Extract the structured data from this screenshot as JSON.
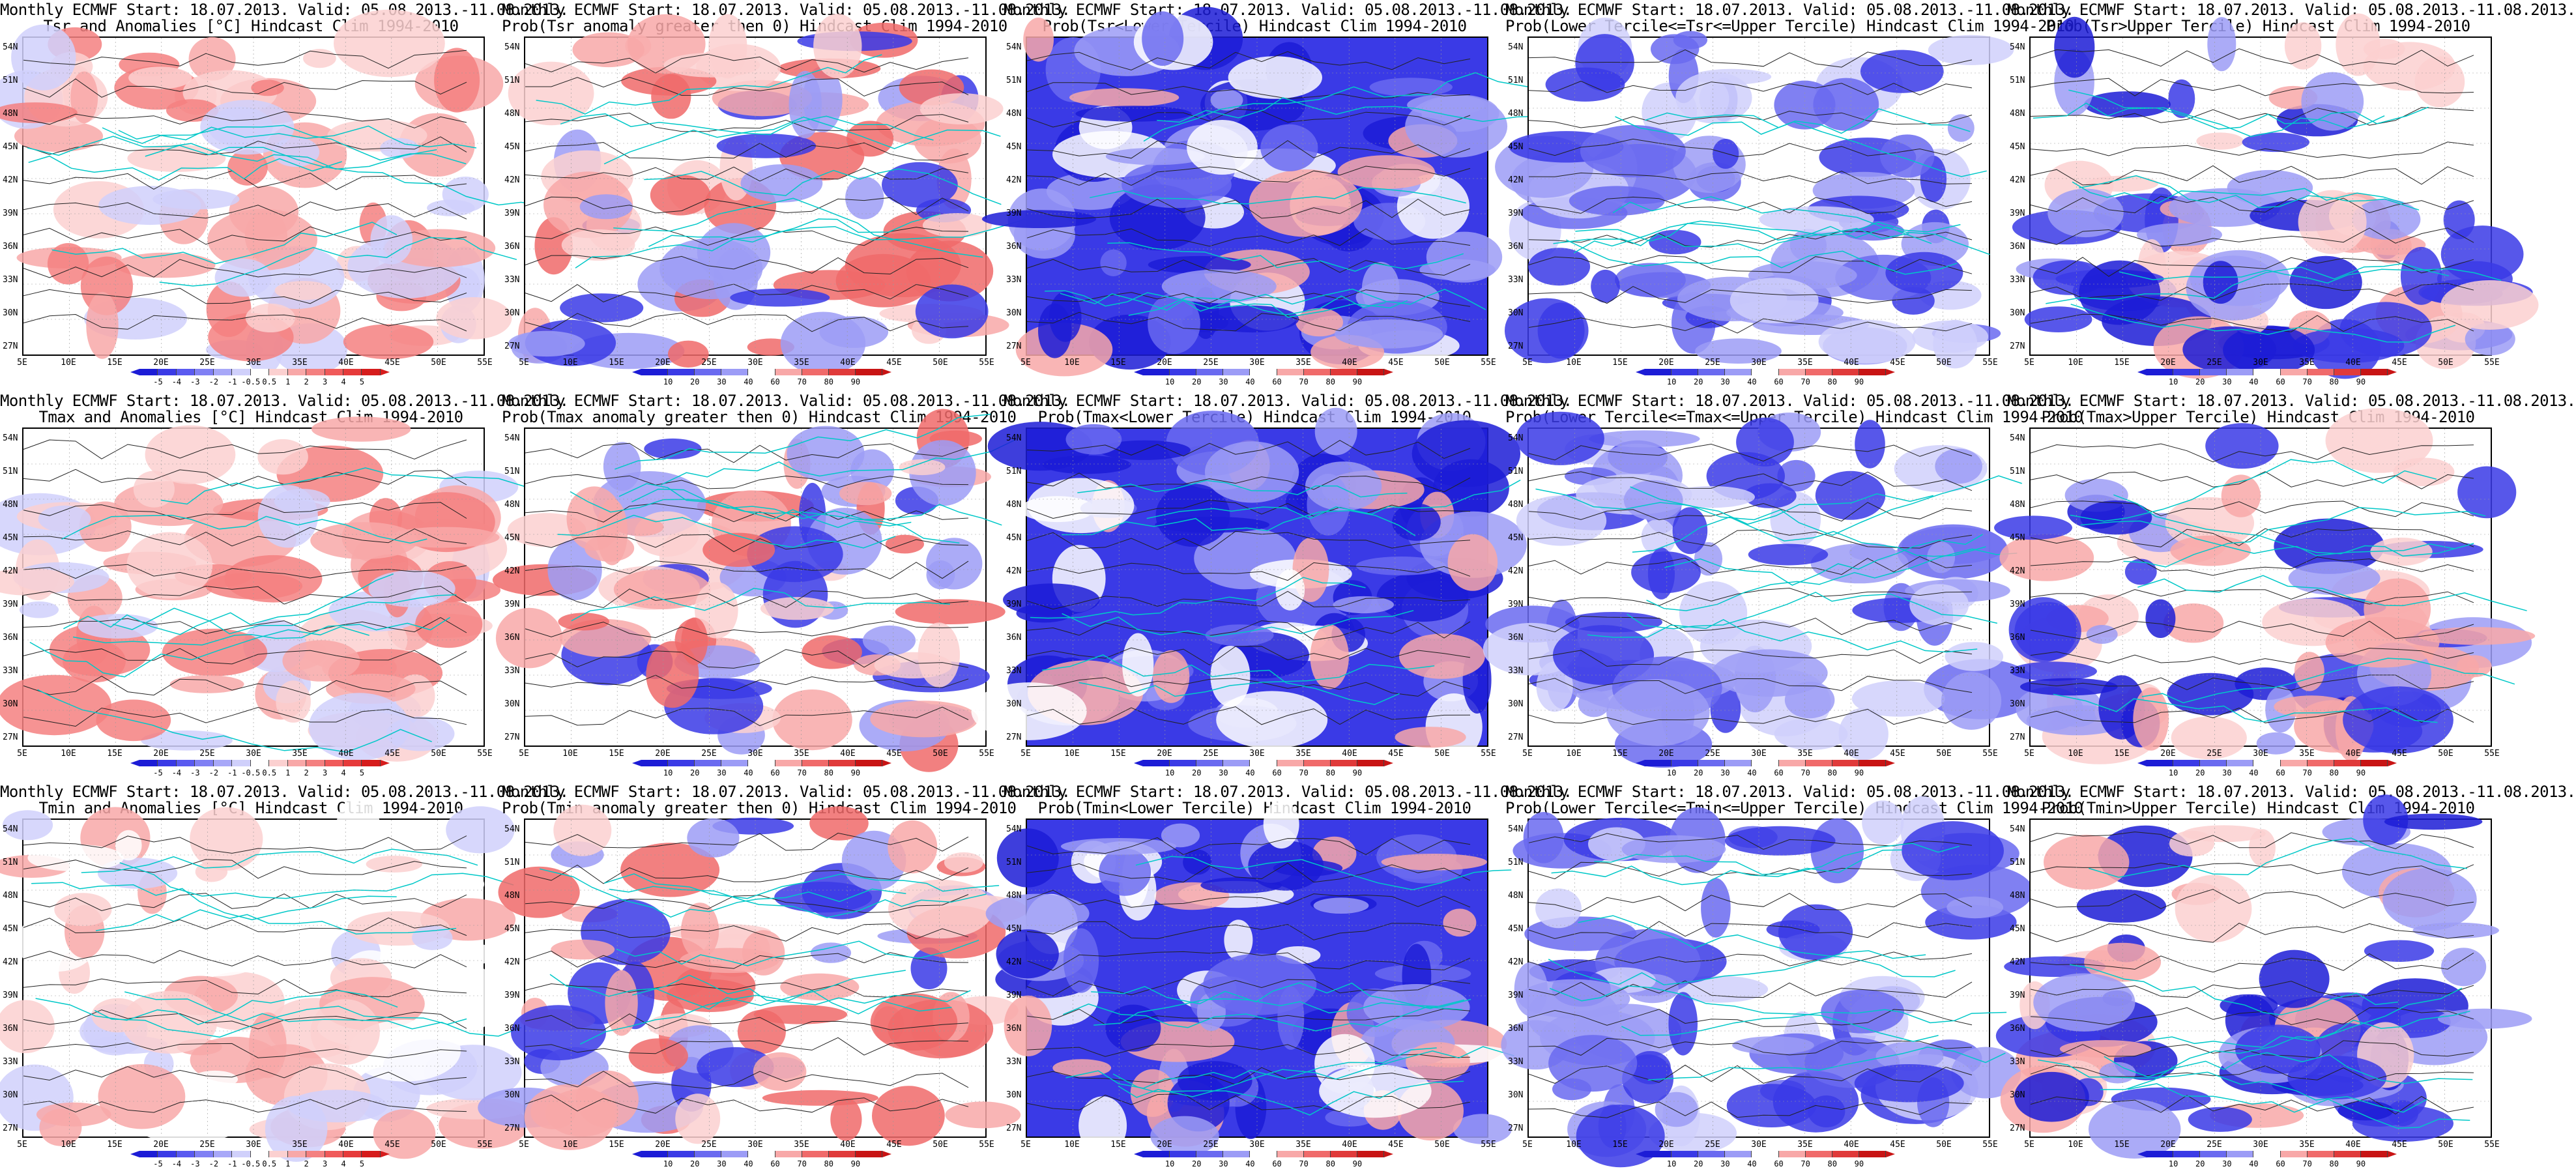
{
  "map_axes": {
    "lat_labels": [
      "54N",
      "51N",
      "48N",
      "45N",
      "42N",
      "39N",
      "36N",
      "33N",
      "30N",
      "27N"
    ],
    "lon_labels": [
      "5E",
      "10E",
      "15E",
      "20E",
      "25E",
      "30E",
      "35E",
      "40E",
      "45E",
      "50E",
      "55E"
    ]
  },
  "colorbars": {
    "anomaly": {
      "labels": [
        "-5",
        "-4",
        "-3",
        "-2",
        "-1",
        "-0.5",
        "0.5",
        "1",
        "2",
        "3",
        "4",
        "5"
      ],
      "colors": [
        "#1c1cd6",
        "#3a3ae6",
        "#5a5af0",
        "#8080f4",
        "#a8a8f8",
        "#d0d0fb",
        "#ffffff",
        "#fbd0d0",
        "#f8a8a8",
        "#f48080",
        "#f05a5a",
        "#e63a3a",
        "#d61c1c"
      ]
    },
    "probability": {
      "labels": [
        "10",
        "20",
        "30",
        "40",
        "60",
        "70",
        "80",
        "90"
      ],
      "colors": [
        "#1c1cd6",
        "#3a3ae6",
        "#6a6af0",
        "#9c9cf6",
        "#ffffff",
        "#f8a8a8",
        "#f06a6a",
        "#e03a3a",
        "#c81414"
      ]
    }
  },
  "panels": [
    {
      "title1": "Monthly ECMWF Start: 18.07.2013. Valid: 05.08.2013.-11.08.2013.",
      "title2": "Tsr and Anomalies [°C] Hindcast Clim 1994-2010",
      "colorbar": "anomaly",
      "field": "warm"
    },
    {
      "title1": "Monthly ECMWF Start: 18.07.2013. Valid: 05.08.2013.-11.08.2013.",
      "title2": "Prob(Tsr anomaly greater then 0) Hindcast Clim 1994-2010",
      "colorbar": "probability",
      "field": "mixed"
    },
    {
      "title1": "Monthly ECMWF Start: 18.07.2013. Valid: 05.08.2013.-11.08.2013.",
      "title2": "Prob(Tsr<Lower Tercile) Hindcast Clim 1994-2010",
      "colorbar": "probability",
      "field": "blue"
    },
    {
      "title1": "Monthly ECMWF Start: 18.07.2013. Valid: 05.08.2013.-11.08.2013.",
      "title2": "Prob(Lower Tercile<=Tsr<=Upper Tercile) Hindcast Clim 1994-2010",
      "colorbar": "probability",
      "field": "lightblue"
    },
    {
      "title1": "Monthly ECMWF Start: 18.07.2013. Valid: 05.08.2013.-11.08.2013.",
      "title2": "Prob(Tsr>Upper Tercile) Hindcast Clim 1994-2010",
      "colorbar": "probability",
      "field": "southblue"
    },
    {
      "title1": "Monthly ECMWF Start: 18.07.2013. Valid: 05.08.2013.-11.08.2013.",
      "title2": "Tmax and Anomalies [°C] Hindcast Clim 1994-2010",
      "colorbar": "anomaly",
      "field": "warm"
    },
    {
      "title1": "Monthly ECMWF Start: 18.07.2013. Valid: 05.08.2013.-11.08.2013.",
      "title2": "Prob(Tmax anomaly greater then 0) Hindcast Clim 1994-2010",
      "colorbar": "probability",
      "field": "mixed"
    },
    {
      "title1": "Monthly ECMWF Start: 18.07.2013. Valid: 05.08.2013.-11.08.2013.",
      "title2": "Prob(Tmax<Lower Tercile) Hindcast Clim 1994-2010",
      "colorbar": "probability",
      "field": "blue"
    },
    {
      "title1": "Monthly ECMWF Start: 18.07.2013. Valid: 05.08.2013.-11.08.2013.",
      "title2": "Prob(Lower Tercile<=Tmax<=Upper Tercile) Hindcast Clim 1994-2010",
      "colorbar": "probability",
      "field": "lightblue"
    },
    {
      "title1": "Monthly ECMWF Start: 18.07.2013. Valid: 05.08.2013.-11.08.2013.",
      "title2": "Prob(Tmax>Upper Tercile) Hindcast Clim 1994-2010",
      "colorbar": "probability",
      "field": "southblue"
    },
    {
      "title1": "Monthly ECMWF Start: 18.07.2013. Valid: 05.08.2013.-11.08.2013.",
      "title2": "Tmin and Anomalies [°C] Hindcast Clim 1994-2010",
      "colorbar": "anomaly",
      "field": "lightwarm"
    },
    {
      "title1": "Monthly ECMWF Start: 18.07.2013. Valid: 05.08.2013.-11.08.2013.",
      "title2": "Prob(Tmin anomaly greater then 0) Hindcast Clim 1994-2010",
      "colorbar": "probability",
      "field": "mixed"
    },
    {
      "title1": "Monthly ECMWF Start: 18.07.2013. Valid: 05.08.2013.-11.08.2013.",
      "title2": "Prob(Tmin<Lower Tercile) Hindcast Clim 1994-2010",
      "colorbar": "probability",
      "field": "blue"
    },
    {
      "title1": "Monthly ECMWF Start: 18.07.2013. Valid: 05.08.2013.-11.08.2013.",
      "title2": "Prob(Lower Tercile<=Tmin<=Upper Tercile) Hindcast Clim 1994-2010",
      "colorbar": "probability",
      "field": "lightblue"
    },
    {
      "title1": "Monthly ECMWF Start: 18.07.2013. Valid: 05.08.2013.-11.08.2013.",
      "title2": "Prob(Tmin>Upper Tercile) Hindcast Clim 1994-2010",
      "colorbar": "probability",
      "field": "southblue"
    }
  ]
}
